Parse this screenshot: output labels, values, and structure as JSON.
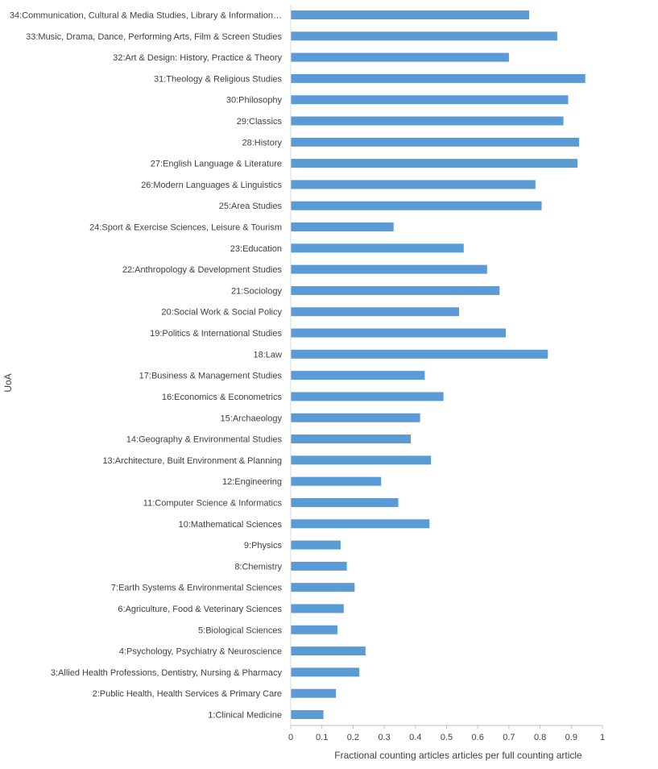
{
  "chart_data": {
    "type": "bar",
    "orientation": "horizontal",
    "xlabel": "Fractional counting articles articles per full counting article",
    "ylabel": "UoA",
    "xlim": [
      0,
      1
    ],
    "xticks": [
      0,
      0.1,
      0.2,
      0.3,
      0.4,
      0.5,
      0.6,
      0.7,
      0.8,
      0.9,
      1
    ],
    "grid": false,
    "legend": "none",
    "bar_color": "#5b9bd5",
    "categories": [
      "34:Communication, Cultural & Media Studies, Library & Information…",
      "33:Music, Drama, Dance, Performing Arts, Film & Screen Studies",
      "32:Art & Design: History, Practice & Theory",
      "31:Theology & Religious Studies",
      "30:Philosophy",
      "29:Classics",
      "28:History",
      "27:English Language & Literature",
      "26:Modern Languages & Linguistics",
      "25:Area Studies",
      "24:Sport & Exercise Sciences, Leisure & Tourism",
      "23:Education",
      "22:Anthropology & Development Studies",
      "21:Sociology",
      "20:Social Work & Social Policy",
      "19:Politics & International Studies",
      "18:Law",
      "17:Business & Management Studies",
      "16:Economics & Econometrics",
      "15:Archaeology",
      "14:Geography & Environmental Studies",
      "13:Architecture, Built Environment & Planning",
      "12:Engineering",
      "11:Computer Science & Informatics",
      "10:Mathematical Sciences",
      "9:Physics",
      "8:Chemistry",
      "7:Earth Systems & Environmental Sciences",
      "6:Agriculture, Food & Veterinary Sciences",
      "5:Biological Sciences",
      "4:Psychology, Psychiatry & Neuroscience",
      "3:Allied Health Professions, Dentistry, Nursing & Pharmacy",
      "2:Public Health, Health Services & Primary Care",
      "1:Clinical Medicine"
    ],
    "values": [
      0.765,
      0.855,
      0.7,
      0.945,
      0.89,
      0.875,
      0.925,
      0.92,
      0.785,
      0.805,
      0.33,
      0.555,
      0.63,
      0.67,
      0.54,
      0.69,
      0.825,
      0.43,
      0.49,
      0.415,
      0.385,
      0.45,
      0.29,
      0.345,
      0.445,
      0.16,
      0.18,
      0.205,
      0.17,
      0.15,
      0.24,
      0.22,
      0.145,
      0.105
    ]
  }
}
